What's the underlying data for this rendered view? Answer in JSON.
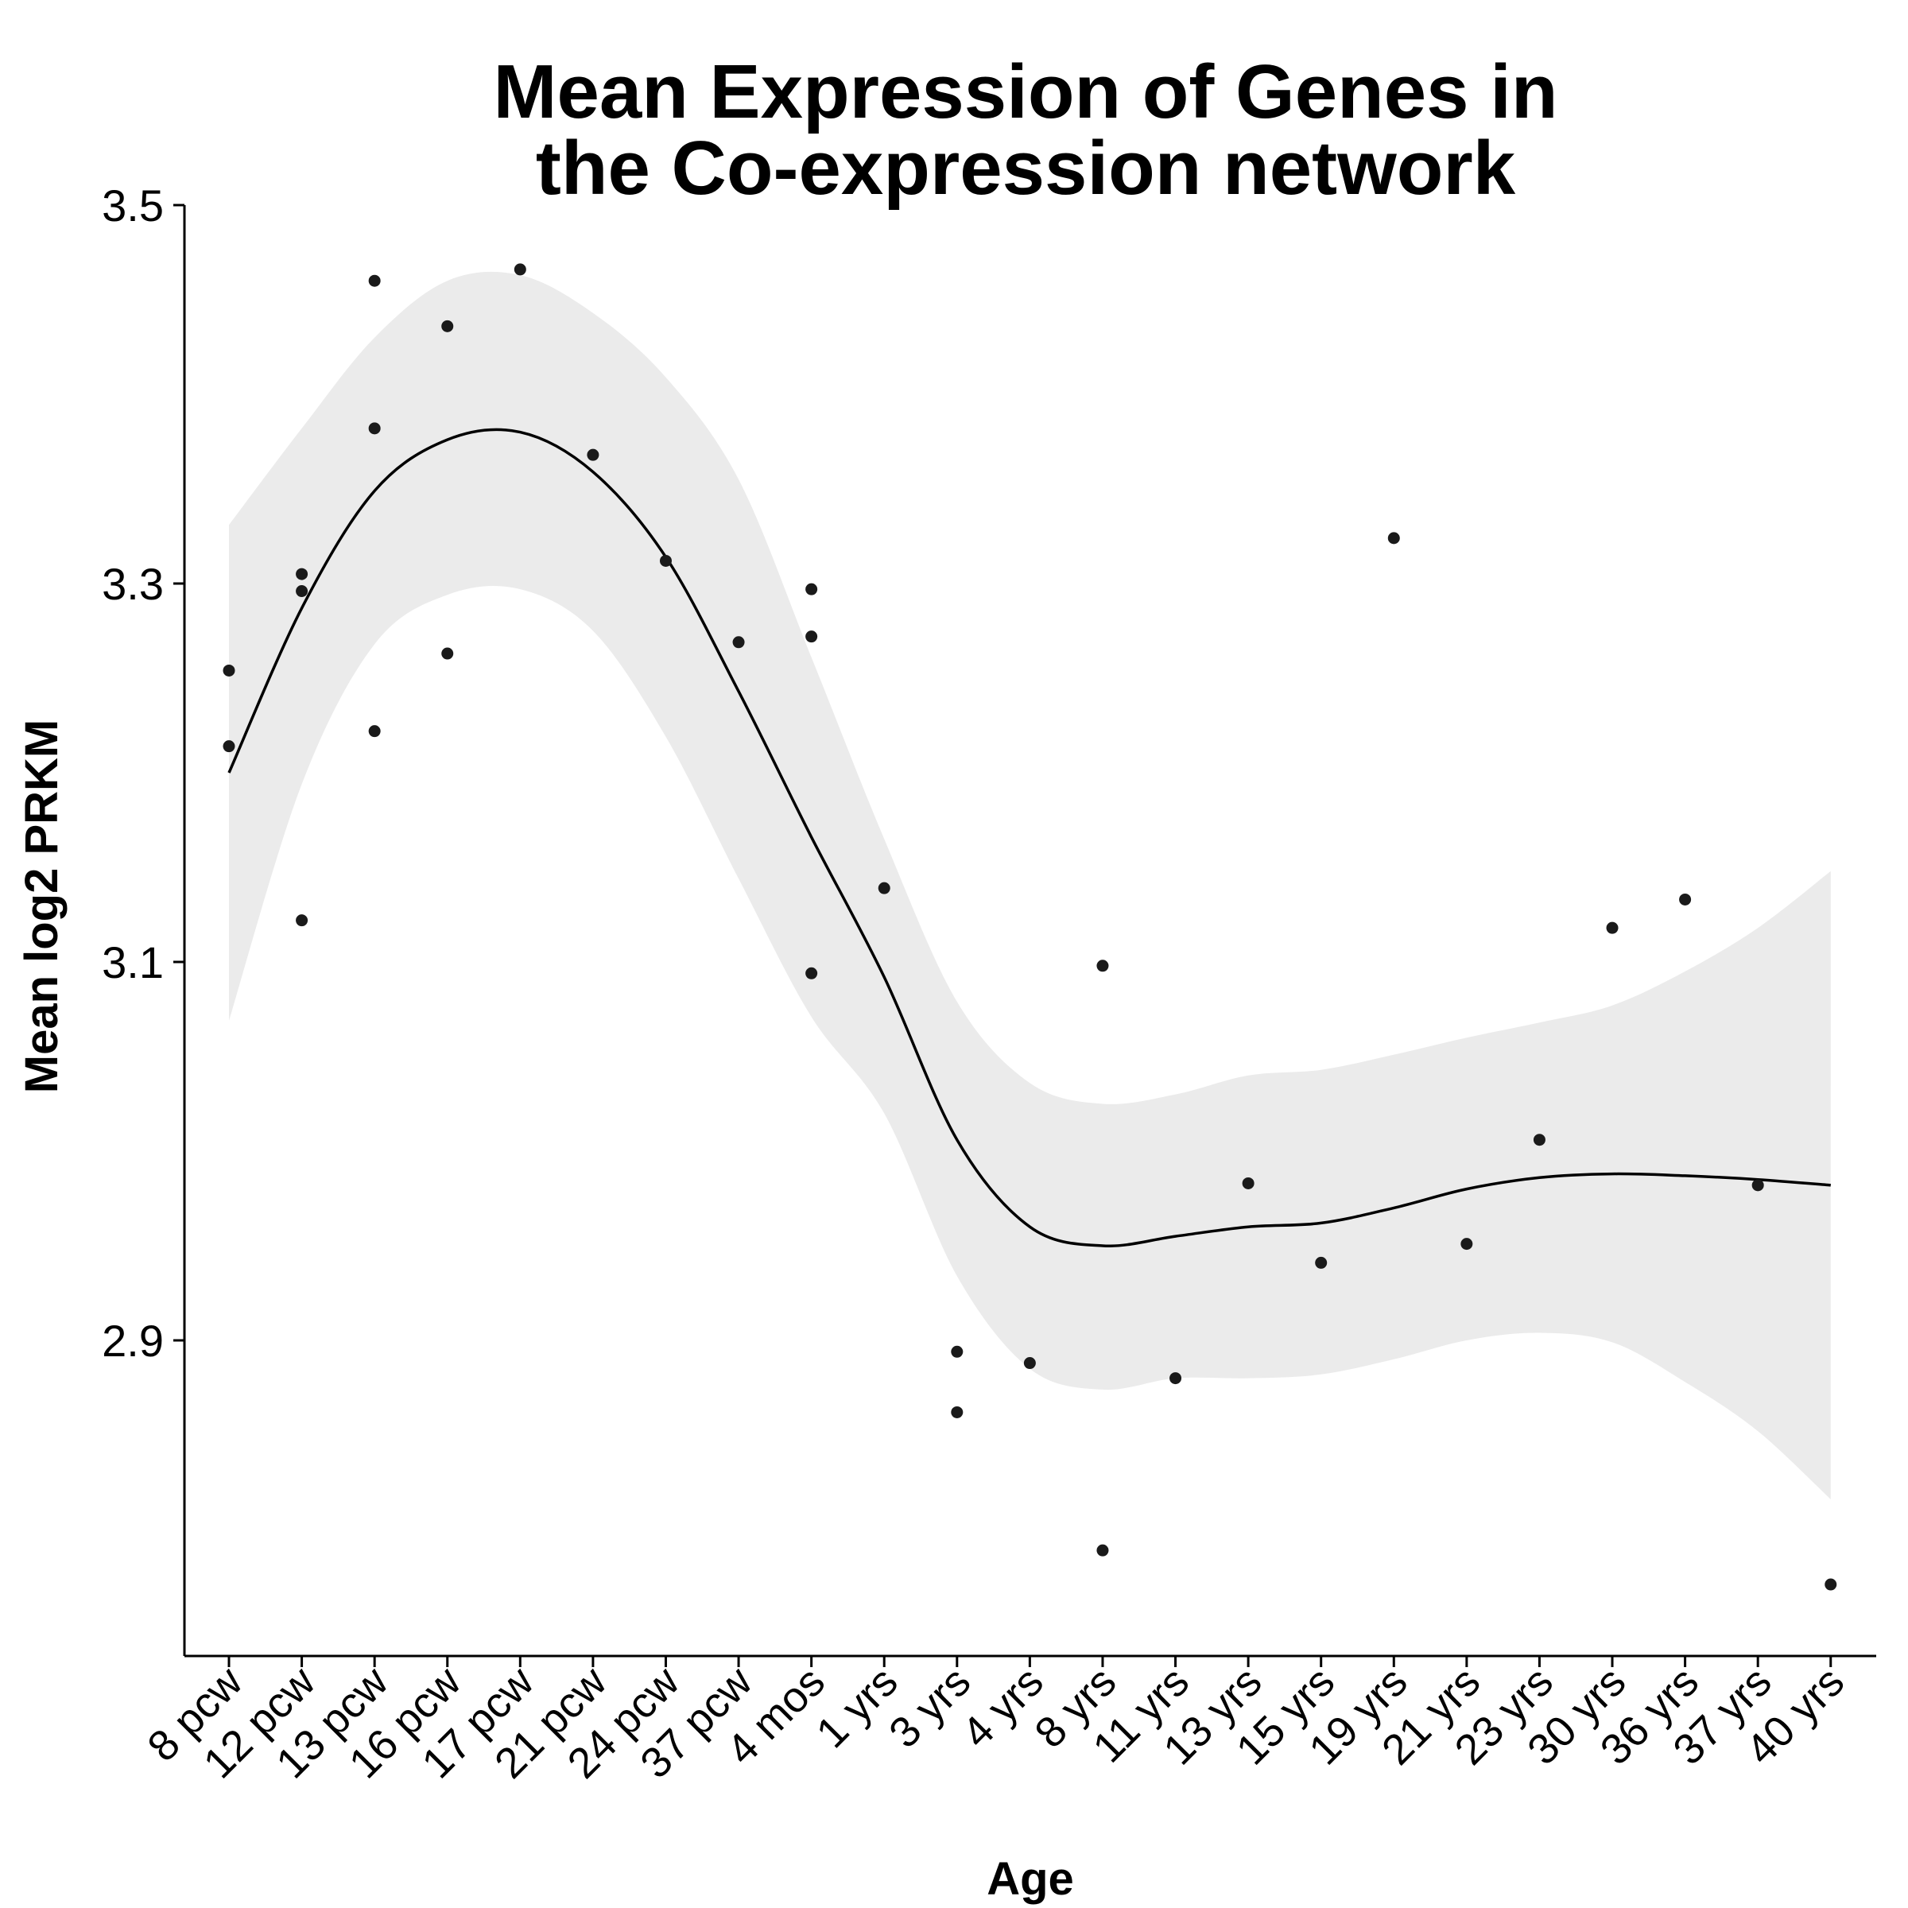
{
  "chart_data": {
    "type": "scatter",
    "title": [
      "Mean Expression of Genes in",
      "the Co-expression network"
    ],
    "xlabel": "Age",
    "ylabel": "Mean log2 PRKM",
    "categories": [
      "8 pcw",
      "12 pcw",
      "13 pcw",
      "16 pcw",
      "17 pcw",
      "21 pcw",
      "24 pcw",
      "37 pcw",
      "4 mos",
      "1 yrs",
      "3 yrs",
      "4 yrs",
      "8 yrs",
      "11 yrs",
      "13 yrs",
      "15 yrs",
      "19 yrs",
      "21 yrs",
      "23 yrs",
      "30 yrs",
      "36 yrs",
      "37 yrs",
      "40 yrs"
    ],
    "yticks": [
      2.9,
      3.1,
      3.3,
      3.5
    ],
    "ytick_labels": [
      "2.9",
      "3.1",
      "3.3",
      "3.5"
    ],
    "ylim": [
      2.737,
      3.5
    ],
    "grid": false,
    "legend": "none",
    "colors": {
      "points": "#1a1a1a",
      "line": "#000000",
      "band": "#ebebeb",
      "axis": "#000000"
    },
    "points": [
      {
        "x": "8 pcw",
        "y": 3.254
      },
      {
        "x": "8 pcw",
        "y": 3.214
      },
      {
        "x": "12 pcw",
        "y": 3.305
      },
      {
        "x": "12 pcw",
        "y": 3.296
      },
      {
        "x": "12 pcw",
        "y": 3.122
      },
      {
        "x": "13 pcw",
        "y": 3.46
      },
      {
        "x": "13 pcw",
        "y": 3.382
      },
      {
        "x": "13 pcw",
        "y": 3.222
      },
      {
        "x": "16 pcw",
        "y": 3.436
      },
      {
        "x": "16 pcw",
        "y": 3.263
      },
      {
        "x": "17 pcw",
        "y": 3.466
      },
      {
        "x": "21 pcw",
        "y": 3.368
      },
      {
        "x": "24 pcw",
        "y": 3.312
      },
      {
        "x": "37 pcw",
        "y": 3.269
      },
      {
        "x": "4 mos",
        "y": 3.297
      },
      {
        "x": "4 mos",
        "y": 3.272
      },
      {
        "x": "4 mos",
        "y": 3.094
      },
      {
        "x": "1 yrs",
        "y": 3.139
      },
      {
        "x": "3 yrs",
        "y": 2.894
      },
      {
        "x": "3 yrs",
        "y": 2.862
      },
      {
        "x": "4 yrs",
        "y": 2.888
      },
      {
        "x": "8 yrs",
        "y": 3.098
      },
      {
        "x": "8 yrs",
        "y": 2.789
      },
      {
        "x": "11 yrs",
        "y": 2.88
      },
      {
        "x": "13 yrs",
        "y": 2.983
      },
      {
        "x": "15 yrs",
        "y": 2.941
      },
      {
        "x": "19 yrs",
        "y": 3.324
      },
      {
        "x": "21 yrs",
        "y": 2.951
      },
      {
        "x": "23 yrs",
        "y": 3.006
      },
      {
        "x": "30 yrs",
        "y": 3.118
      },
      {
        "x": "36 yrs",
        "y": 3.133
      },
      {
        "x": "37 yrs",
        "y": 2.982
      },
      {
        "x": "40 yrs",
        "y": 2.771
      }
    ],
    "smooth": {
      "x": [
        "8 pcw",
        "12 pcw",
        "13 pcw",
        "16 pcw",
        "17 pcw",
        "21 pcw",
        "24 pcw",
        "37 pcw",
        "4 mos",
        "1 yrs",
        "3 yrs",
        "4 yrs",
        "8 yrs",
        "11 yrs",
        "13 yrs",
        "15 yrs",
        "19 yrs",
        "21 yrs",
        "23 yrs",
        "30 yrs",
        "36 yrs",
        "37 yrs",
        "40 yrs"
      ],
      "fit": [
        3.2,
        3.287,
        3.349,
        3.376,
        3.38,
        3.359,
        3.314,
        3.243,
        3.166,
        3.092,
        3.006,
        2.96,
        2.95,
        2.955,
        2.96,
        2.962,
        2.97,
        2.98,
        2.986,
        2.988,
        2.987,
        2.985,
        2.982
      ],
      "upper": [
        3.331,
        3.382,
        3.43,
        3.46,
        3.463,
        3.443,
        3.409,
        3.355,
        3.261,
        3.165,
        3.079,
        3.036,
        3.025,
        3.03,
        3.04,
        3.043,
        3.051,
        3.06,
        3.068,
        3.077,
        3.095,
        3.118,
        3.148
      ],
      "lower": [
        3.069,
        3.194,
        3.268,
        3.294,
        3.297,
        3.275,
        3.219,
        3.144,
        3.071,
        3.02,
        2.934,
        2.885,
        2.874,
        2.88,
        2.88,
        2.882,
        2.89,
        2.9,
        2.904,
        2.899,
        2.878,
        2.852,
        2.816
      ]
    }
  }
}
